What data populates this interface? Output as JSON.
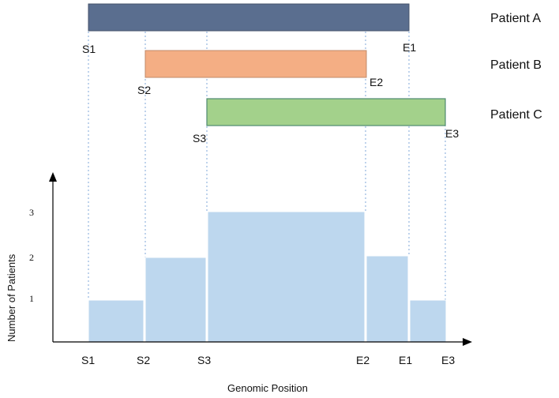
{
  "colors": {
    "patient_a": "#5a6e8f",
    "patient_b": "#f4ae84",
    "patient_c": "#a3d18b",
    "histogram": "#bdd7ee",
    "guide": "#7fa7d9",
    "axis": "#000000"
  },
  "positions": [
    {
      "id": "S1",
      "x": 1
    },
    {
      "id": "S2",
      "x": 2
    },
    {
      "id": "S3",
      "x": 3
    },
    {
      "id": "E2",
      "x": 5
    },
    {
      "id": "E1",
      "x": 6
    },
    {
      "id": "E3",
      "x": 7
    }
  ],
  "patients": [
    {
      "name": "Patient A",
      "start": "S1",
      "end": "E1",
      "color_key": "patient_a"
    },
    {
      "name": "Patient B",
      "start": "S2",
      "end": "E2",
      "color_key": "patient_b"
    },
    {
      "name": "Patient C",
      "start": "S3",
      "end": "E3",
      "color_key": "patient_c"
    }
  ],
  "histogram": {
    "ylabel": "Number of Patients",
    "xlabel": "Genomic Position",
    "yticks": [
      "1",
      "2",
      "3"
    ],
    "segments": [
      {
        "from": "S1",
        "to": "S2",
        "count": 1
      },
      {
        "from": "S2",
        "to": "S3",
        "count": 2
      },
      {
        "from": "S3",
        "to": "E2",
        "count": 3
      },
      {
        "from": "E2",
        "to": "E1",
        "count": 2
      },
      {
        "from": "E1",
        "to": "E3",
        "count": 1
      }
    ],
    "x_labels": [
      "S1",
      "S2",
      "S3",
      "E2",
      "E1",
      "E3"
    ]
  }
}
